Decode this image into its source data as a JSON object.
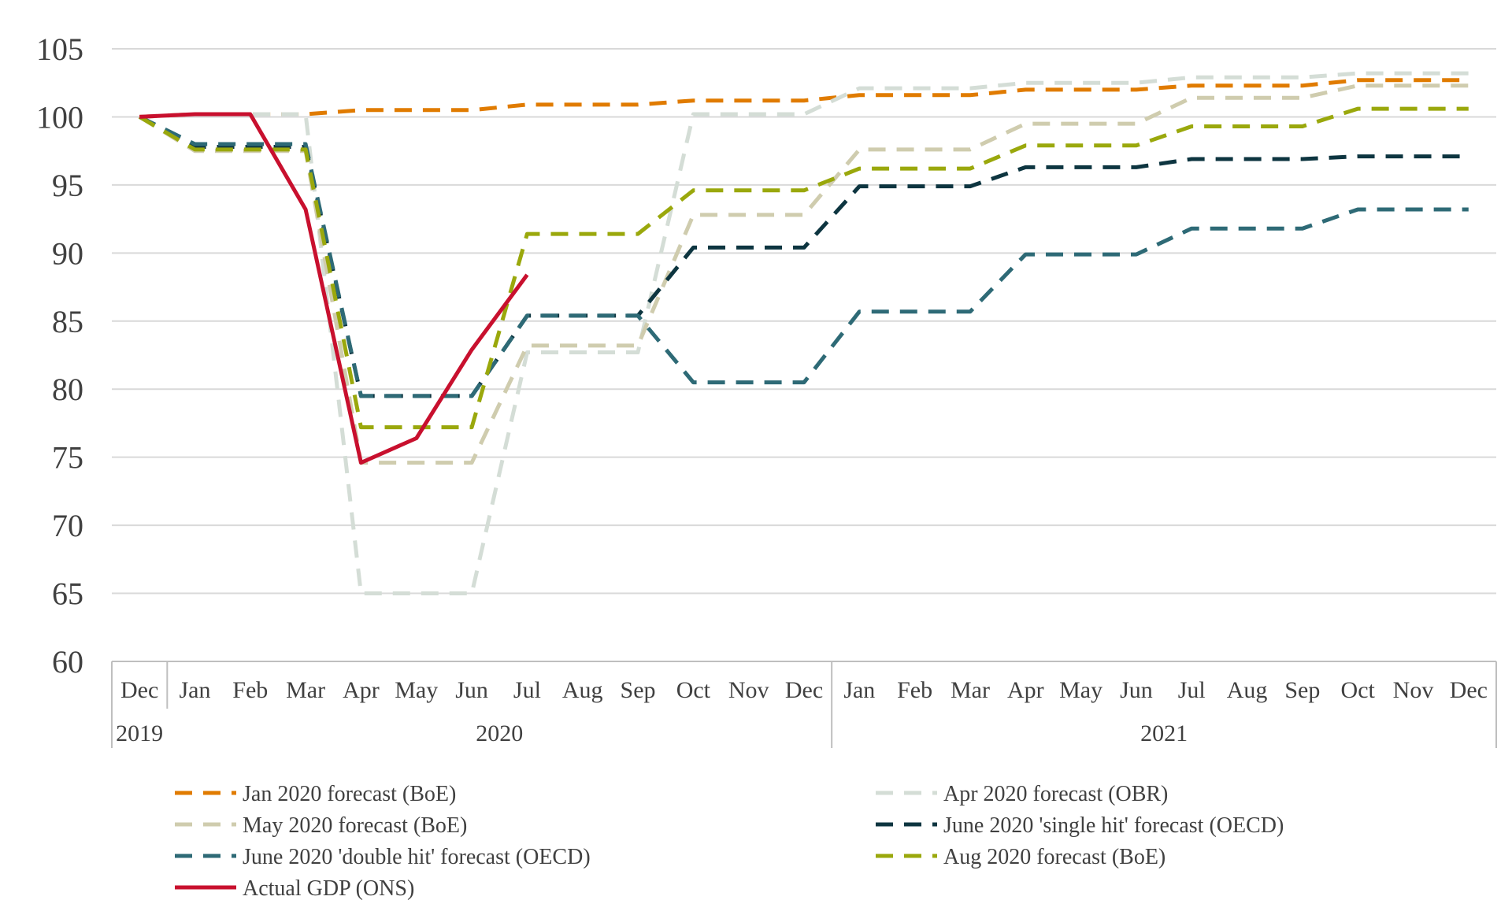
{
  "chart_data": {
    "type": "line",
    "title": "",
    "xlabel": "",
    "ylabel": "",
    "ylim": [
      60,
      105
    ],
    "yticks": [
      60,
      65,
      70,
      75,
      80,
      85,
      90,
      95,
      100,
      105
    ],
    "grid": "horizontal",
    "legend_position": "bottom",
    "x": [
      "Dec",
      "Jan",
      "Feb",
      "Mar",
      "Apr",
      "May",
      "Jun",
      "Jul",
      "Aug",
      "Sep",
      "Oct",
      "Nov",
      "Dec",
      "Jan",
      "Feb",
      "Mar",
      "Apr",
      "May",
      "Jun",
      "Jul",
      "Aug",
      "Sep",
      "Oct",
      "Nov",
      "Dec"
    ],
    "year_groups": [
      {
        "label": "2019",
        "start": 0,
        "end": 0
      },
      {
        "label": "2020",
        "start": 1,
        "end": 12
      },
      {
        "label": "2021",
        "start": 13,
        "end": 24
      }
    ],
    "series": [
      {
        "name": "Jan 2020 forecast (BoE)",
        "color": "#e07b00",
        "style": "dashed",
        "values": [
          100,
          100.2,
          100.2,
          100.2,
          100.5,
          100.5,
          100.5,
          100.9,
          100.9,
          100.9,
          101.2,
          101.2,
          101.2,
          101.6,
          101.6,
          101.6,
          102.0,
          102.0,
          102.0,
          102.3,
          102.3,
          102.3,
          102.7,
          102.7,
          102.7
        ]
      },
      {
        "name": "Apr 2020 forecast (OBR)",
        "color": "#d4ddd6",
        "style": "dashed",
        "values": [
          100,
          100.2,
          100.2,
          100.2,
          65.0,
          65.0,
          65.0,
          82.7,
          82.7,
          82.7,
          100.2,
          100.2,
          100.2,
          102.1,
          102.1,
          102.1,
          102.5,
          102.5,
          102.5,
          102.9,
          102.9,
          102.9,
          103.2,
          103.2,
          103.2
        ]
      },
      {
        "name": "May 2020 forecast (BoE)",
        "color": "#cfccae",
        "style": "dashed",
        "values": [
          100,
          97.5,
          97.5,
          97.5,
          74.6,
          74.6,
          74.6,
          83.2,
          83.2,
          83.2,
          92.8,
          92.8,
          92.8,
          97.6,
          97.6,
          97.6,
          99.5,
          99.5,
          99.5,
          101.4,
          101.4,
          101.4,
          102.3,
          102.3,
          102.3
        ]
      },
      {
        "name": "June 2020 'single hit' forecast (OECD)",
        "color": "#0d3540",
        "style": "dashed",
        "values": [
          100,
          97.8,
          97.8,
          97.8,
          79.5,
          79.5,
          79.5,
          85.4,
          85.4,
          85.4,
          90.4,
          90.4,
          90.4,
          94.9,
          94.9,
          94.9,
          96.3,
          96.3,
          96.3,
          96.9,
          96.9,
          96.9,
          97.1,
          97.1,
          97.1
        ]
      },
      {
        "name": "June 2020 'double hit' forecast (OECD)",
        "color": "#2e6a76",
        "style": "dashed",
        "values": [
          100,
          98.0,
          98.0,
          98.0,
          79.5,
          79.5,
          79.5,
          85.4,
          85.4,
          85.4,
          80.5,
          80.5,
          80.5,
          85.7,
          85.7,
          85.7,
          89.9,
          89.9,
          89.9,
          91.8,
          91.8,
          91.8,
          93.2,
          93.2,
          93.2
        ]
      },
      {
        "name": "Aug 2020 forecast (BoE)",
        "color": "#9aa80c",
        "style": "dashed",
        "values": [
          100,
          97.6,
          97.6,
          97.6,
          77.2,
          77.2,
          77.2,
          91.4,
          91.4,
          91.4,
          94.6,
          94.6,
          94.6,
          96.2,
          96.2,
          96.2,
          97.9,
          97.9,
          97.9,
          99.3,
          99.3,
          99.3,
          100.6,
          100.6,
          100.6
        ]
      },
      {
        "name": "Actual GDP (ONS)",
        "color": "#c8102e",
        "style": "solid",
        "values": [
          100,
          100.2,
          100.2,
          93.2,
          74.6,
          76.4,
          82.9,
          88.4,
          null,
          null,
          null,
          null,
          null,
          null,
          null,
          null,
          null,
          null,
          null,
          null,
          null,
          null,
          null,
          null,
          null
        ]
      }
    ]
  }
}
